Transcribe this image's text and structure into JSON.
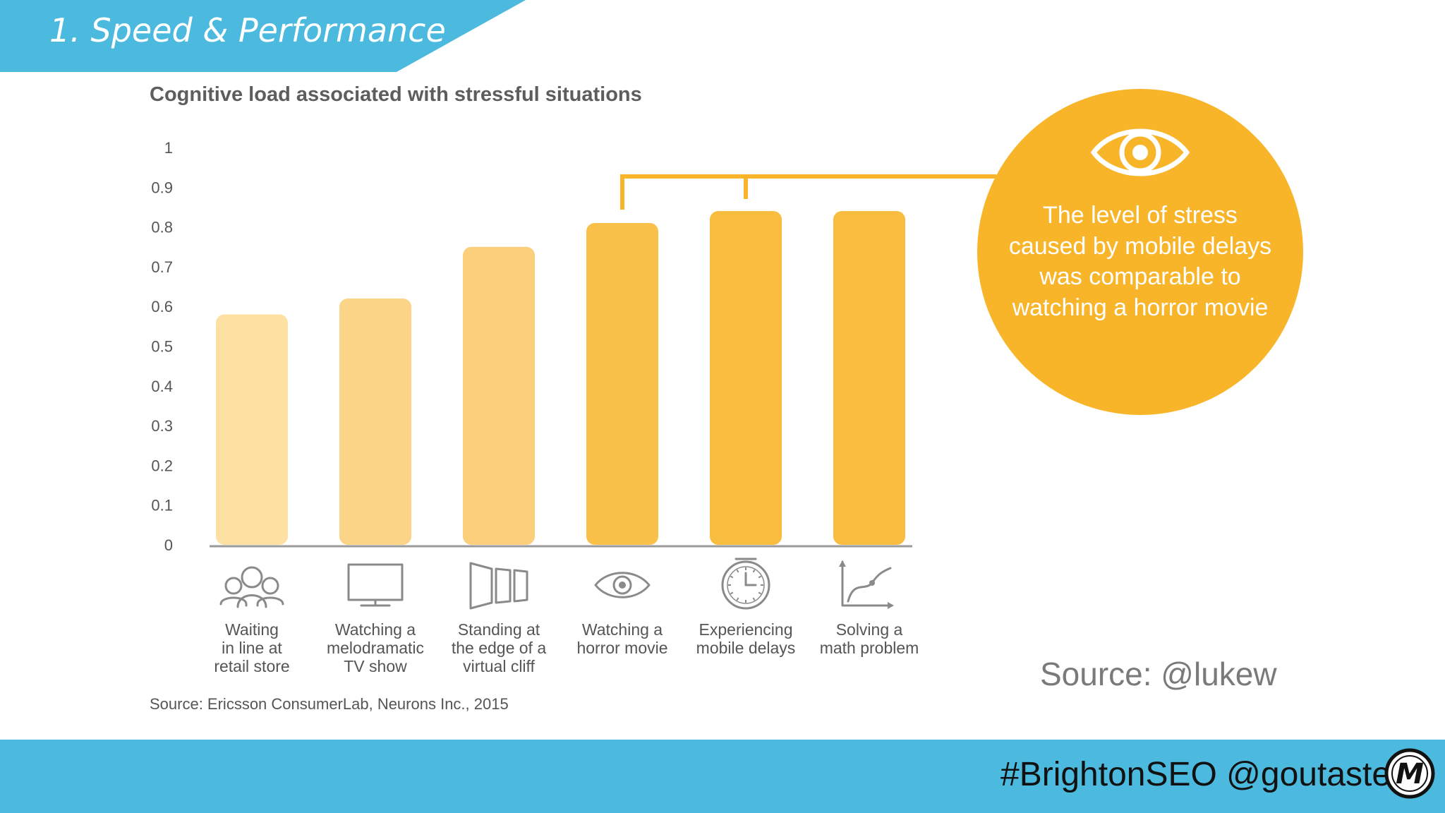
{
  "header": {
    "title": "1. Speed & Performance"
  },
  "chart_data": {
    "type": "bar",
    "title": "Cognitive load associated with stressful situations",
    "xlabel": "",
    "ylabel": "",
    "ylim": [
      0,
      1
    ],
    "yticks": [
      "1",
      "0.9",
      "0.8",
      "0.7",
      "0.6",
      "0.5",
      "0.4",
      "0.3",
      "0.2",
      "0.1",
      "0"
    ],
    "categories": [
      "Waiting\nin line at\nretail store",
      "Watching a\nmelodramatic\nTV show",
      "Standing at\nthe edge of a\nvirtual cliff",
      "Watching a\nhorror movie",
      "Experiencing\nmobile delays",
      "Solving a\nmath problem"
    ],
    "values": [
      0.58,
      0.62,
      0.75,
      0.81,
      0.84,
      0.84
    ],
    "bar_colors": [
      "#fde1a3",
      "#fcd488",
      "#fccf7d",
      "#f9c14a",
      "#f8bd3f",
      "#f8bd3f"
    ],
    "category_icons": [
      "people-icon",
      "tv-monitor-icon",
      "cliff-panels-icon",
      "eye-icon",
      "clock-icon",
      "chart-graph-icon"
    ],
    "source": "Source: Ericsson ConsumerLab, Neurons Inc., 2015",
    "grid": false
  },
  "callout": {
    "icon": "eye-icon",
    "text": "The level of stress caused by mobile delays was comparable to watching a horror movie",
    "color": "#f8b52a"
  },
  "credit": "Source: @lukew",
  "footer": {
    "text": "#BrightonSEO @goutaste",
    "logo": "m-logo-icon"
  },
  "colors": {
    "banner": "#4cb9de",
    "footer": "#4cb9de",
    "accent": "#f8b52a"
  }
}
